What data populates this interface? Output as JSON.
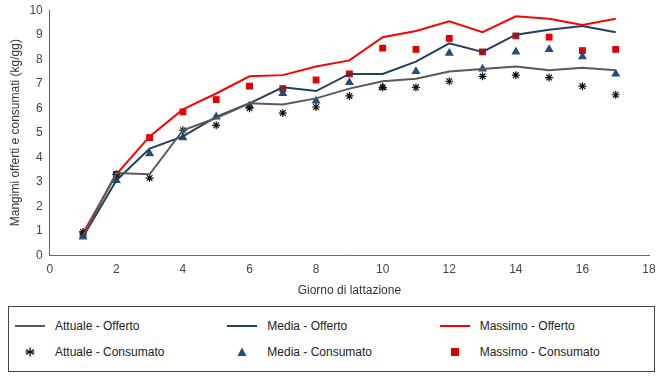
{
  "chart_data": {
    "type": "line",
    "x_label": "Giorno di lattazione",
    "y_label": "Mangimi offerti e consumati (kg/gg)",
    "x": [
      1,
      2,
      3,
      4,
      5,
      6,
      7,
      8,
      9,
      10,
      11,
      12,
      13,
      14,
      15,
      16,
      17
    ],
    "xlim": [
      0,
      18
    ],
    "xticks": [
      0,
      2,
      4,
      6,
      8,
      10,
      12,
      14,
      16,
      18
    ],
    "ylim": [
      0,
      10
    ],
    "yticks": [
      0,
      1,
      2,
      3,
      4,
      5,
      6,
      7,
      8,
      9,
      10
    ],
    "grid": false,
    "legend": "bottom",
    "series": [
      {
        "name": "Attuale - Offerto",
        "type": "line",
        "marker": "none",
        "line_style": "solid",
        "color": "#595959",
        "values": [
          0.8,
          3.35,
          3.3,
          5.1,
          5.6,
          6.2,
          6.15,
          6.4,
          6.8,
          7.1,
          7.2,
          7.5,
          7.6,
          7.7,
          7.55,
          7.65,
          7.55
        ]
      },
      {
        "name": "Attuale - Consumato",
        "type": "scatter",
        "marker": "star",
        "color": "#111111",
        "values": [
          0.95,
          3.3,
          3.15,
          5.1,
          5.3,
          6.0,
          5.8,
          6.05,
          6.5,
          6.85,
          6.85,
          7.1,
          7.3,
          7.35,
          7.25,
          6.9,
          6.55
        ]
      },
      {
        "name": "Media - Offerto",
        "type": "line",
        "marker": "none",
        "line_style": "solid",
        "color": "#243f60",
        "values": [
          0.75,
          3.05,
          4.35,
          4.85,
          5.65,
          6.2,
          6.85,
          6.7,
          7.4,
          7.4,
          7.9,
          8.65,
          8.3,
          9.0,
          9.2,
          9.35,
          9.1
        ]
      },
      {
        "name": "Media - Consumato",
        "type": "scatter",
        "marker": "triangle",
        "color": "#1f4e79",
        "values": [
          0.75,
          3.05,
          4.15,
          4.8,
          5.65,
          6.1,
          6.6,
          6.3,
          7.05,
          6.85,
          7.5,
          8.25,
          7.6,
          8.3,
          8.4,
          8.1,
          7.4
        ]
      },
      {
        "name": "Massimo - Offerto",
        "type": "line",
        "marker": "none",
        "line_style": "solid",
        "color": "#ff0000",
        "values": [
          0.9,
          3.3,
          4.85,
          5.95,
          6.6,
          7.3,
          7.35,
          7.7,
          7.95,
          8.9,
          9.15,
          9.55,
          9.1,
          9.75,
          9.65,
          9.4,
          9.65
        ]
      },
      {
        "name": "Massimo - Consumato",
        "type": "scatter",
        "marker": "square",
        "color": "#e00000",
        "values": [
          0.85,
          3.3,
          4.8,
          5.85,
          6.35,
          6.9,
          6.8,
          7.15,
          7.4,
          8.45,
          8.4,
          8.85,
          8.3,
          8.95,
          8.9,
          8.35,
          8.4
        ]
      }
    ]
  }
}
